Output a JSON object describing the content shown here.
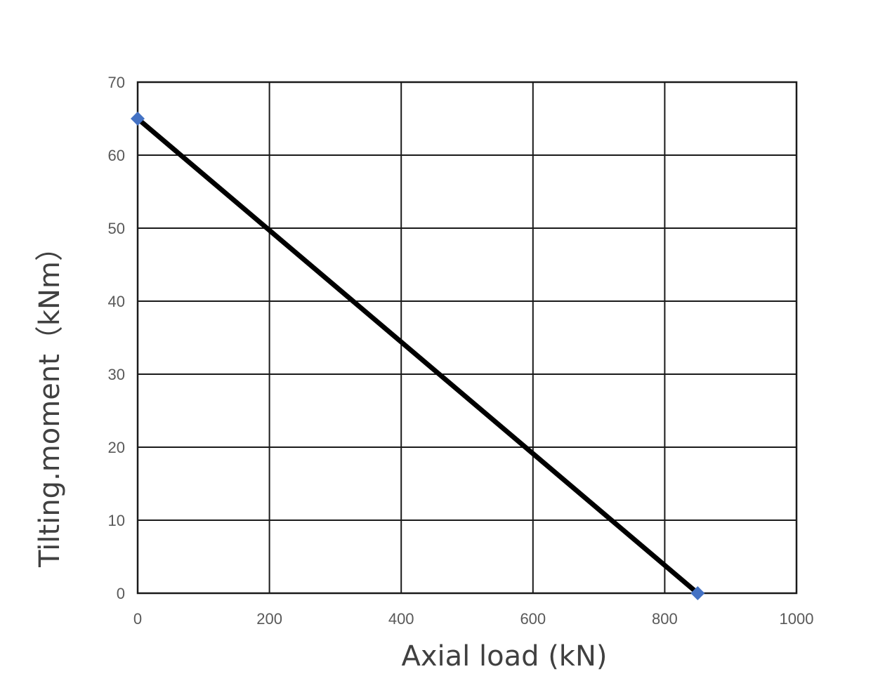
{
  "chart_data": {
    "type": "line",
    "title": "",
    "xlabel": "Axial load (kN)",
    "ylabel": "Tilting.moment（kNm）",
    "xlim": [
      0,
      1000
    ],
    "ylim": [
      0,
      70
    ],
    "xticks": [
      0,
      200,
      400,
      600,
      800,
      1000
    ],
    "yticks": [
      0,
      10,
      20,
      30,
      40,
      50,
      60,
      70
    ],
    "x_tick_labels": [
      "0",
      "200",
      "400",
      "600",
      "800",
      "1000"
    ],
    "y_tick_labels": [
      "0",
      "10",
      "20",
      "30",
      "40",
      "50",
      "60",
      "70"
    ],
    "grid": true,
    "legend": "none",
    "series": [
      {
        "points": [
          {
            "x": 0,
            "y": 65
          },
          {
            "x": 850,
            "y": 0
          }
        ],
        "line_color": "#000000",
        "marker": "diamond",
        "marker_color": "#4472C4"
      }
    ]
  }
}
